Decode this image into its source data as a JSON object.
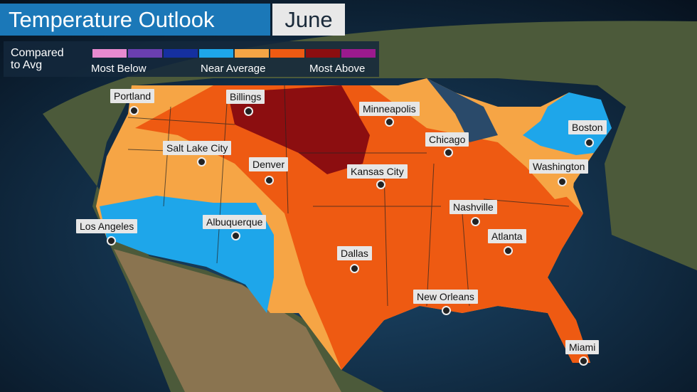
{
  "header": {
    "title": "Temperature Outlook",
    "month": "June"
  },
  "legend": {
    "label": [
      "Compared",
      "to Avg"
    ],
    "ticks": [
      "Most Below",
      "Near Average",
      "Most Above"
    ]
  },
  "cities": [
    "Portland",
    "Billings",
    "Minneapolis",
    "Boston",
    "Salt Lake City",
    "Denver",
    "Chicago",
    "Kansas City",
    "Washington",
    "Los Angeles",
    "Albuquerque",
    "Nashville",
    "Atlanta",
    "Dallas",
    "New Orleans",
    "Miami"
  ]
}
